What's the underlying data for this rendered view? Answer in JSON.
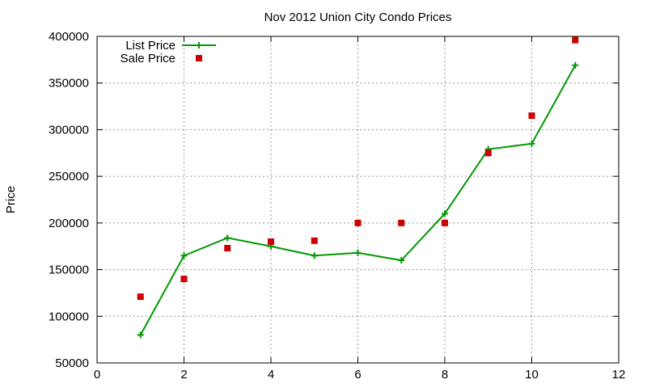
{
  "chart_data": {
    "type": "line",
    "title": "Nov 2012 Union City Condo Prices",
    "xlabel": "",
    "ylabel": "Price",
    "xlim": [
      0,
      12
    ],
    "ylim": [
      50000,
      400000
    ],
    "xticks": [
      0,
      2,
      4,
      6,
      8,
      10,
      12
    ],
    "yticks": [
      50000,
      100000,
      150000,
      200000,
      250000,
      300000,
      350000,
      400000
    ],
    "grid": true,
    "legend_position": "top-left",
    "series": [
      {
        "name": "List Price",
        "style": "line-with-plus-markers",
        "color": "#009900",
        "x": [
          1,
          2,
          3,
          4,
          5,
          6,
          7,
          8,
          9,
          10,
          11
        ],
        "y": [
          80000,
          165000,
          184000,
          175000,
          165000,
          168000,
          160000,
          210000,
          279000,
          285000,
          369000
        ]
      },
      {
        "name": "Sale Price",
        "style": "square-points",
        "color": "#cc0000",
        "x": [
          1,
          2,
          3,
          4,
          5,
          6,
          7,
          8,
          9,
          10,
          11
        ],
        "y": [
          121000,
          140000,
          173000,
          180000,
          181000,
          200000,
          200000,
          200000,
          275000,
          315000,
          396000
        ]
      }
    ]
  }
}
